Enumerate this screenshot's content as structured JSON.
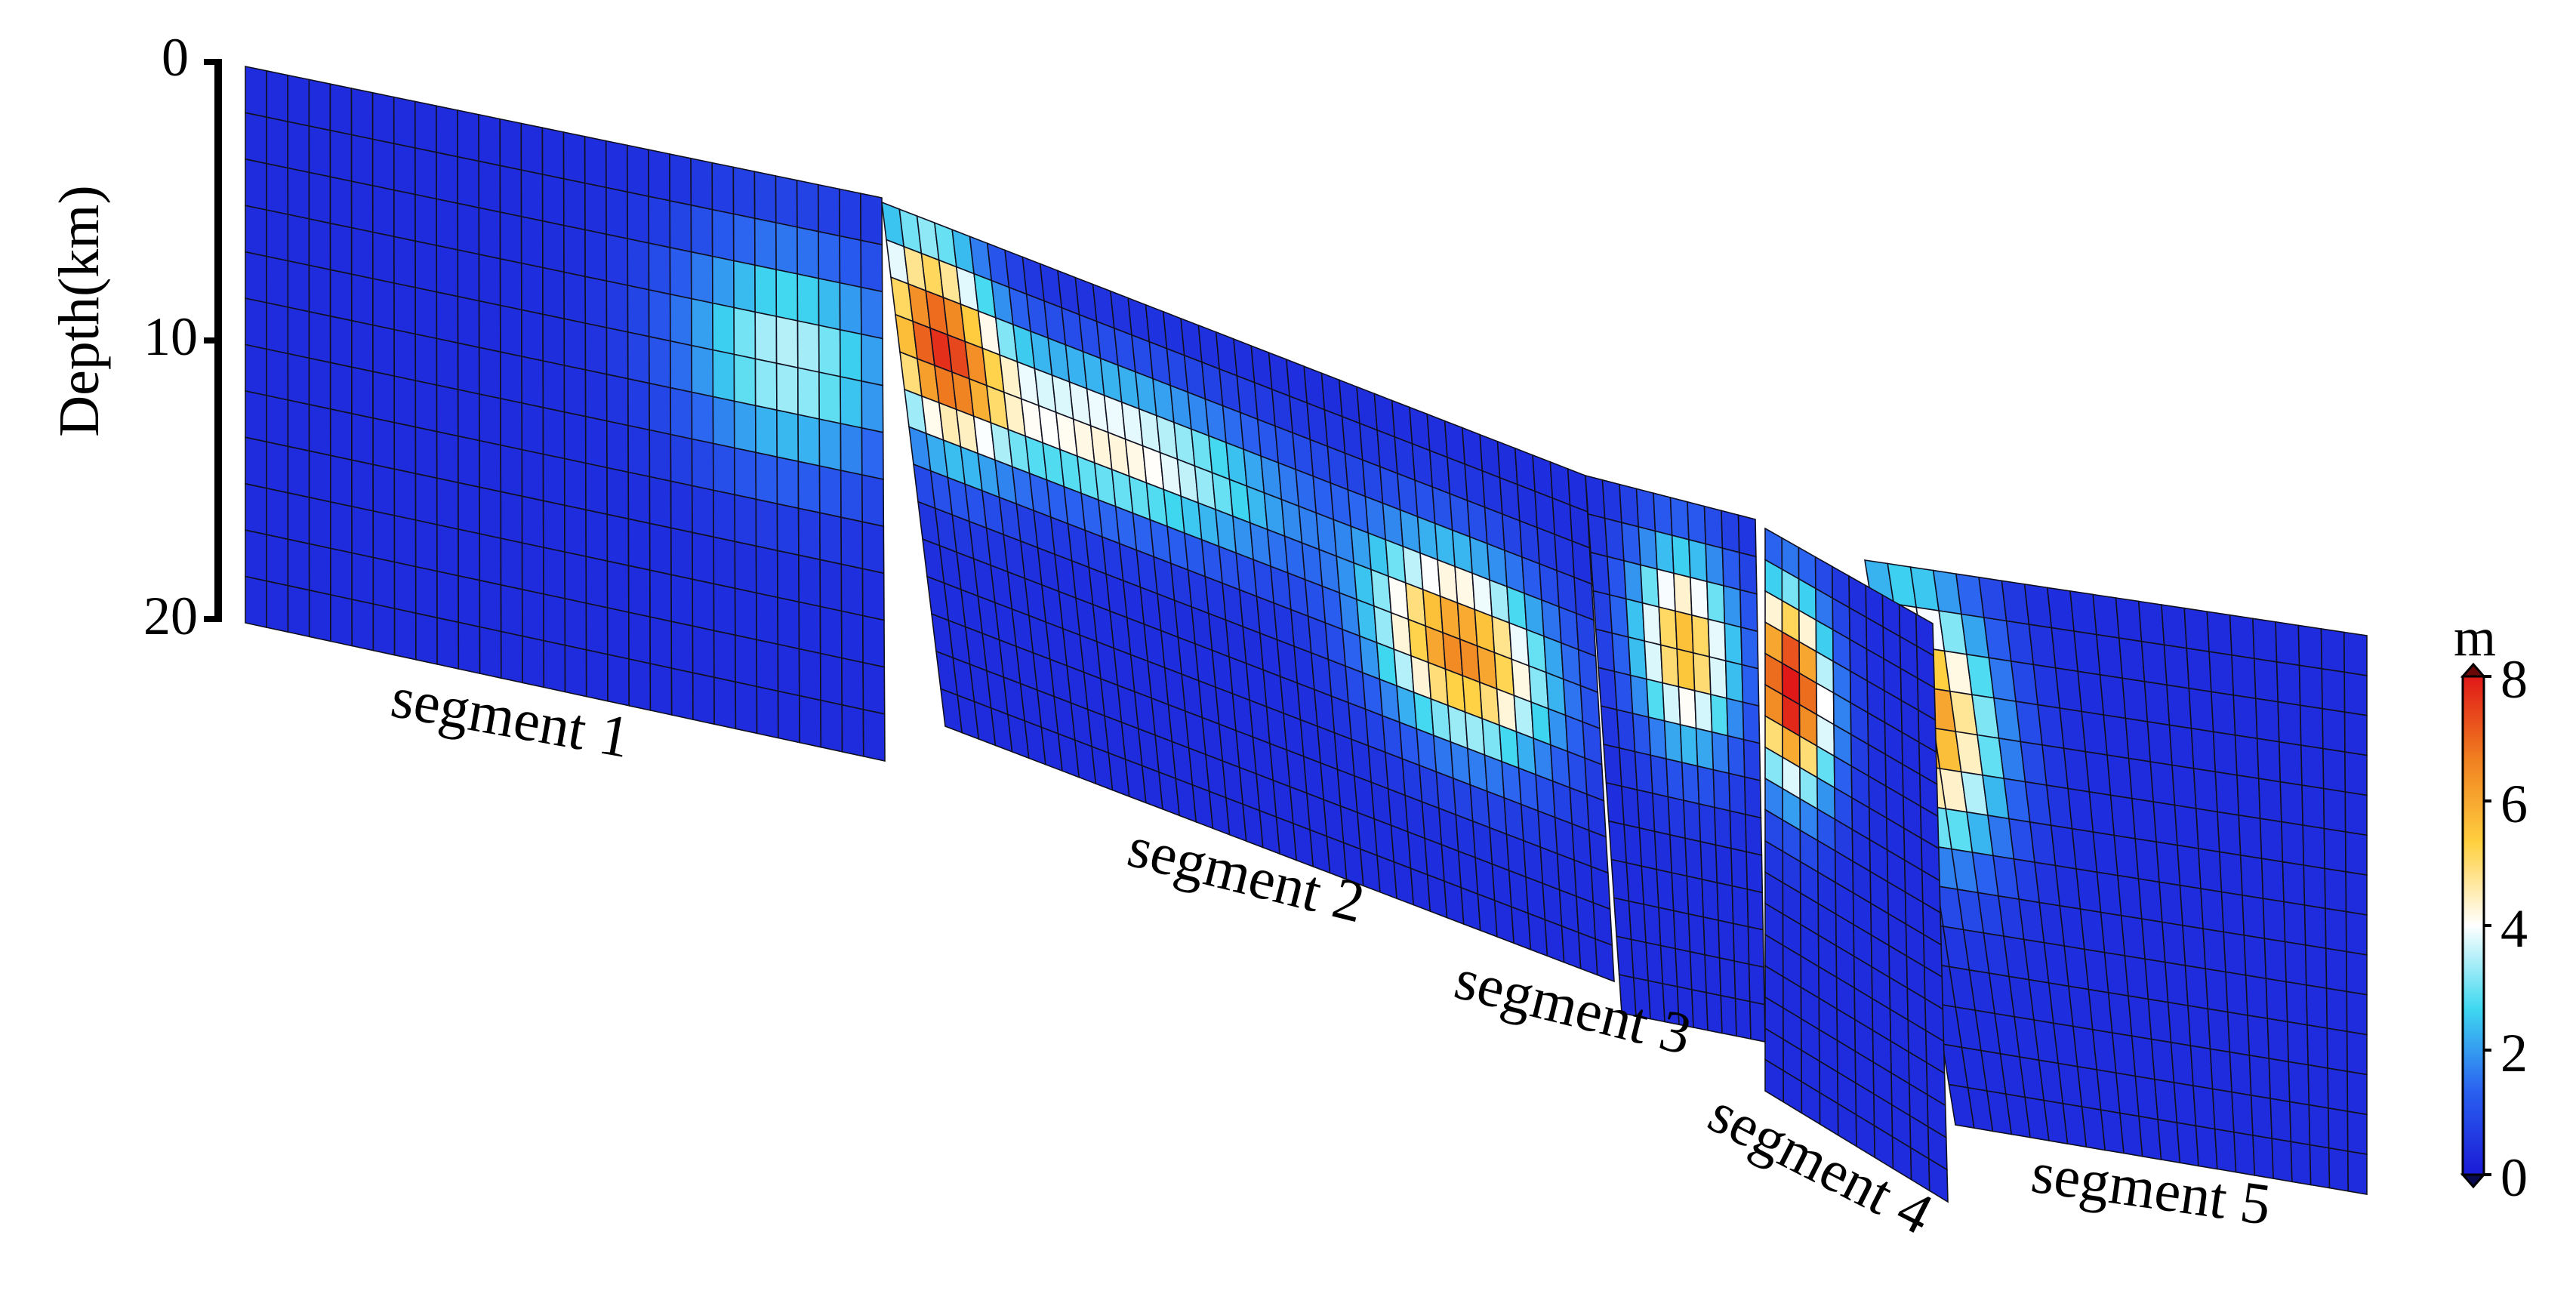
{
  "depth_axis": {
    "label": "Depth(km)",
    "ticks": [
      "0",
      "10",
      "20"
    ]
  },
  "colorbar": {
    "unit": "m",
    "ticks": [
      "8",
      "6",
      "4",
      "2",
      "0"
    ],
    "range": [
      0,
      8
    ],
    "colormap": [
      "#1a1ad6",
      "#2a60f0",
      "#3fd8f0",
      "#ffffff",
      "#ffd040",
      "#f08020",
      "#e01818"
    ]
  },
  "segments": [
    {
      "label": "segment 1",
      "cols": 30,
      "rows": 12,
      "slip_hotspots": [
        {
          "col": 0.85,
          "row": 0.32,
          "peak": 3.2,
          "spread_col": 0.12,
          "spread_row": 0.14
        }
      ]
    },
    {
      "label": "segment 2",
      "cols": 40,
      "rows": 14,
      "slip_hotspots": [
        {
          "col": 0.06,
          "row": 0.22,
          "peak": 6.0,
          "spread_col": 0.06,
          "spread_row": 0.15
        },
        {
          "col": 0.3,
          "row": 0.3,
          "peak": 4.0,
          "spread_col": 0.18,
          "spread_row": 0.1
        },
        {
          "col": 0.8,
          "row": 0.45,
          "peak": 6.2,
          "spread_col": 0.09,
          "spread_row": 0.13
        }
      ]
    },
    {
      "label": "segment 3",
      "cols": 10,
      "rows": 14,
      "slip_hotspots": [
        {
          "col": 0.55,
          "row": 0.28,
          "peak": 5.4,
          "spread_col": 0.22,
          "spread_row": 0.13
        }
      ]
    },
    {
      "label": "segment 4",
      "cols": 10,
      "rows": 18,
      "slip_hotspots": [
        {
          "col": 0.15,
          "row": 0.26,
          "peak": 8.0,
          "spread_col": 0.16,
          "spread_row": 0.12
        }
      ]
    },
    {
      "label": "segment 5",
      "cols": 22,
      "rows": 14,
      "slip_hotspots": [
        {
          "col": 0.08,
          "row": 0.26,
          "peak": 6.0,
          "spread_col": 0.1,
          "spread_row": 0.16
        }
      ]
    }
  ]
}
